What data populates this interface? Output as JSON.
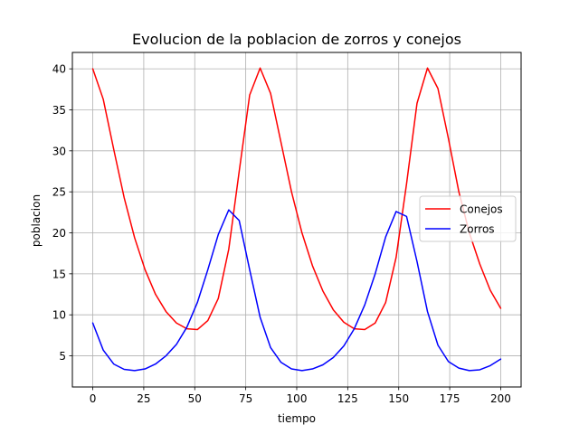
{
  "chart_data": {
    "type": "line",
    "title": "Evolucion de la poblacion de zorros y conejos",
    "xlabel": "tiempo",
    "ylabel": "poblacion",
    "xlim": [
      -10,
      210
    ],
    "ylim": [
      1.2,
      42.0
    ],
    "xticks": [
      0,
      25,
      50,
      75,
      100,
      125,
      150,
      175,
      200
    ],
    "yticks": [
      5,
      10,
      15,
      20,
      25,
      30,
      35,
      40
    ],
    "grid": true,
    "legend_position": "center-right",
    "x": [
      0,
      5.13,
      10.26,
      15.38,
      20.51,
      25.64,
      30.77,
      35.9,
      41.03,
      46.15,
      51.28,
      56.41,
      61.54,
      66.67,
      71.79,
      76.92,
      82.05,
      87.18,
      92.31,
      97.44,
      102.56,
      107.69,
      112.82,
      117.95,
      123.08,
      128.21,
      133.33,
      138.46,
      143.59,
      148.72,
      153.85,
      158.97,
      164.1,
      169.23,
      174.36,
      179.49,
      184.62,
      189.74,
      194.87,
      200
    ],
    "series": [
      {
        "name": "Conejos",
        "color": "#ff0000",
        "values": [
          40.0,
          36.3,
          30.2,
          24.3,
          19.4,
          15.5,
          12.5,
          10.4,
          9.0,
          8.3,
          8.2,
          9.3,
          12.0,
          18.0,
          27.5,
          36.8,
          40.1,
          37.0,
          31.0,
          25.0,
          20.0,
          16.0,
          12.9,
          10.6,
          9.1,
          8.3,
          8.2,
          9.0,
          11.5,
          17.0,
          26.0,
          35.8,
          40.1,
          37.6,
          31.5,
          25.0,
          20.0,
          16.2,
          13.0,
          10.8
        ]
      },
      {
        "name": "Zorros",
        "color": "#0000ff",
        "values": [
          9.0,
          5.7,
          4.0,
          3.35,
          3.2,
          3.4,
          4.0,
          5.0,
          6.4,
          8.5,
          11.5,
          15.5,
          19.8,
          22.8,
          21.5,
          15.5,
          9.7,
          6.0,
          4.2,
          3.4,
          3.2,
          3.4,
          3.9,
          4.8,
          6.2,
          8.3,
          11.2,
          15.0,
          19.5,
          22.6,
          22.0,
          16.5,
          10.4,
          6.3,
          4.3,
          3.5,
          3.2,
          3.3,
          3.8,
          4.6
        ]
      }
    ]
  }
}
